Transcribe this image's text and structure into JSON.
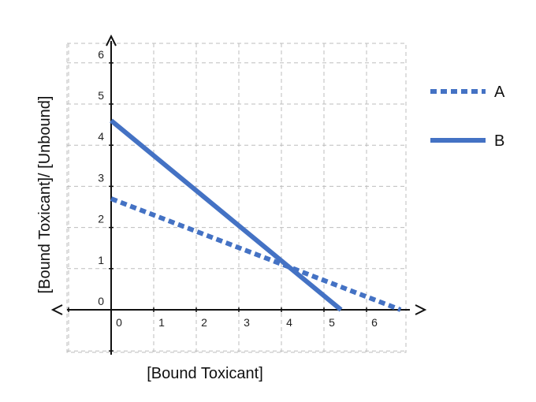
{
  "chart_data": {
    "type": "line",
    "title": "",
    "xlabel": "[Bound Toxicant]",
    "ylabel": "[Bound Toxicant]/ [Unbound]",
    "xlim": [
      -1,
      7
    ],
    "ylim": [
      -1,
      6.4
    ],
    "x_ticks": [
      "0",
      "1",
      "2",
      "3",
      "4",
      "5",
      "6"
    ],
    "y_ticks": [
      "0",
      "1",
      "2",
      "3",
      "4",
      "5",
      "6"
    ],
    "grid": true,
    "legend_position": "right",
    "series": [
      {
        "name": "A",
        "style": "dotted",
        "color": "#4472c4",
        "x": [
          0,
          6.8
        ],
        "y": [
          2.7,
          0
        ]
      },
      {
        "name": "B",
        "style": "solid",
        "color": "#4472c4",
        "x": [
          0,
          5.4
        ],
        "y": [
          4.6,
          0
        ]
      }
    ]
  }
}
